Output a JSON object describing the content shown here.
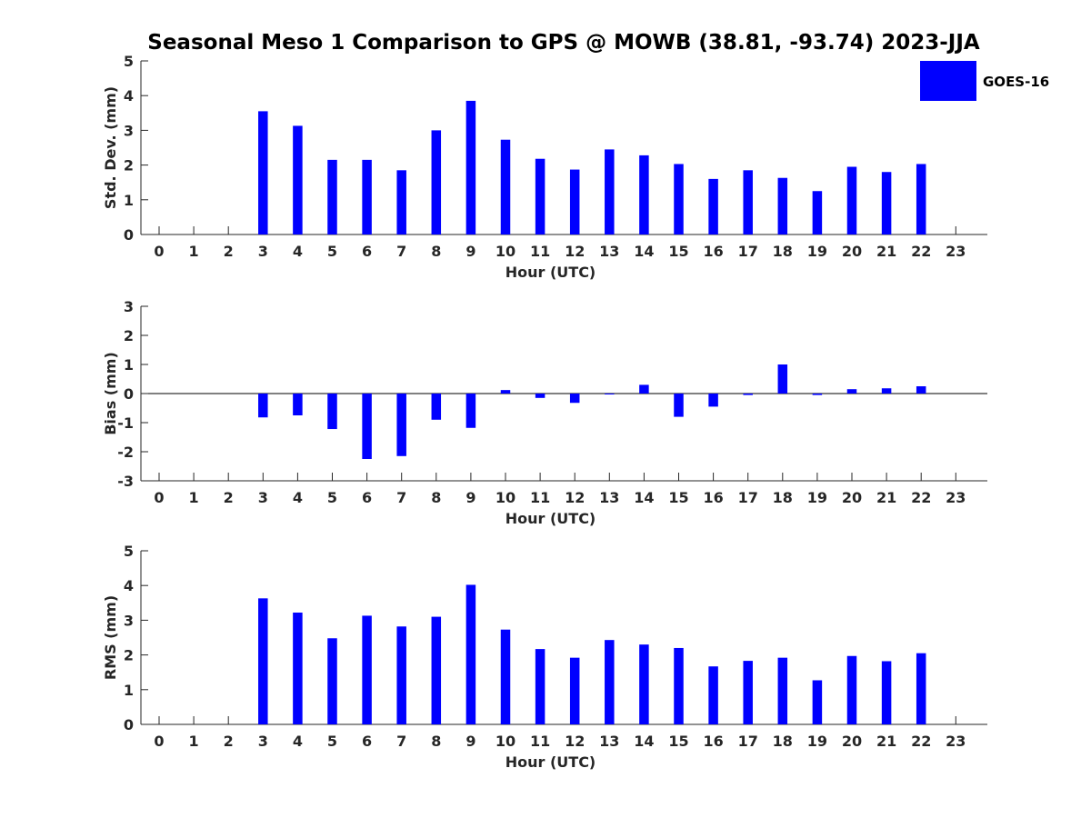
{
  "chart_data": {
    "title": "Seasonal Meso 1 Comparison to GPS @ MOWB (38.81, -93.74) 2023-JJA",
    "legend": {
      "label": "GOES-16",
      "color": "#0000ff",
      "position": "top-right"
    },
    "colors": {
      "bar": "#0000ff",
      "axis": "#262626",
      "background": "#ffffff"
    },
    "panels": [
      {
        "type": "bar",
        "ylabel": "Std. Dev. (mm)",
        "xlabel": "Hour (UTC)",
        "ylim": [
          0,
          5
        ],
        "yticks": [
          "0",
          "1",
          "2",
          "3",
          "4",
          "5"
        ],
        "categories": [
          "0",
          "1",
          "2",
          "3",
          "4",
          "5",
          "6",
          "7",
          "8",
          "9",
          "10",
          "11",
          "12",
          "13",
          "14",
          "15",
          "16",
          "17",
          "18",
          "19",
          "20",
          "21",
          "22",
          "23"
        ],
        "values": [
          null,
          null,
          null,
          3.55,
          3.13,
          2.15,
          2.15,
          1.85,
          3.0,
          3.85,
          2.73,
          2.18,
          1.87,
          2.45,
          2.28,
          2.03,
          1.6,
          1.85,
          1.63,
          1.25,
          1.95,
          1.8,
          2.03,
          null
        ]
      },
      {
        "type": "bar",
        "ylabel": "Bias (mm)",
        "xlabel": "Hour (UTC)",
        "ylim": [
          -3,
          3
        ],
        "yticks": [
          "-3",
          "-2",
          "-1",
          "0",
          "1",
          "2",
          "3"
        ],
        "categories": [
          "0",
          "1",
          "2",
          "3",
          "4",
          "5",
          "6",
          "7",
          "8",
          "9",
          "10",
          "11",
          "12",
          "13",
          "14",
          "15",
          "16",
          "17",
          "18",
          "19",
          "20",
          "21",
          "22",
          "23"
        ],
        "values": [
          null,
          null,
          null,
          -0.82,
          -0.75,
          -1.22,
          -2.25,
          -2.15,
          -0.9,
          -1.18,
          0.12,
          -0.15,
          -0.32,
          0.0,
          0.3,
          -0.8,
          -0.45,
          -0.05,
          1.0,
          -0.05,
          0.15,
          0.18,
          0.25,
          null
        ]
      },
      {
        "type": "bar",
        "ylabel": "RMS (mm)",
        "xlabel": "Hour (UTC)",
        "ylim": [
          0,
          5
        ],
        "yticks": [
          "0",
          "1",
          "2",
          "3",
          "4",
          "5"
        ],
        "categories": [
          "0",
          "1",
          "2",
          "3",
          "4",
          "5",
          "6",
          "7",
          "8",
          "9",
          "10",
          "11",
          "12",
          "13",
          "14",
          "15",
          "16",
          "17",
          "18",
          "19",
          "20",
          "21",
          "22",
          "23"
        ],
        "values": [
          null,
          null,
          null,
          3.63,
          3.22,
          2.48,
          3.13,
          2.82,
          3.1,
          4.02,
          2.73,
          2.17,
          1.92,
          2.43,
          2.3,
          2.2,
          1.67,
          1.83,
          1.92,
          1.27,
          1.97,
          1.82,
          2.05,
          null
        ]
      }
    ]
  }
}
